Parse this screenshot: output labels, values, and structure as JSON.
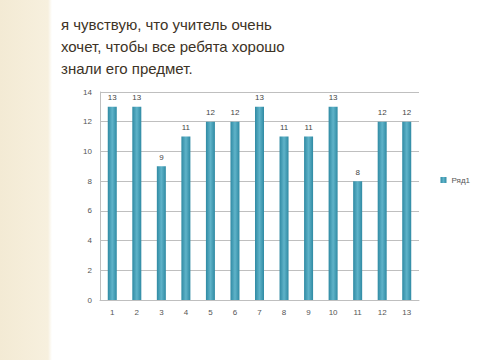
{
  "chart_data": {
    "type": "bar",
    "title": "я чувствую, что учитель очень хочет, чтобы все ребята хорошо знали его предмет.",
    "categories": [
      "1",
      "2",
      "3",
      "4",
      "5",
      "6",
      "7",
      "8",
      "9",
      "10",
      "11",
      "12",
      "13"
    ],
    "series": [
      {
        "name": "Ряд1",
        "color": "#2f8aa3",
        "values": [
          13,
          13,
          9,
          11,
          12,
          12,
          13,
          11,
          11,
          13,
          8,
          12,
          12
        ]
      }
    ],
    "ylim": [
      0,
      14
    ],
    "yticks": [
      0,
      2,
      4,
      6,
      8,
      10,
      12,
      14
    ],
    "grid": true,
    "legend": "right",
    "data_labels": true
  }
}
